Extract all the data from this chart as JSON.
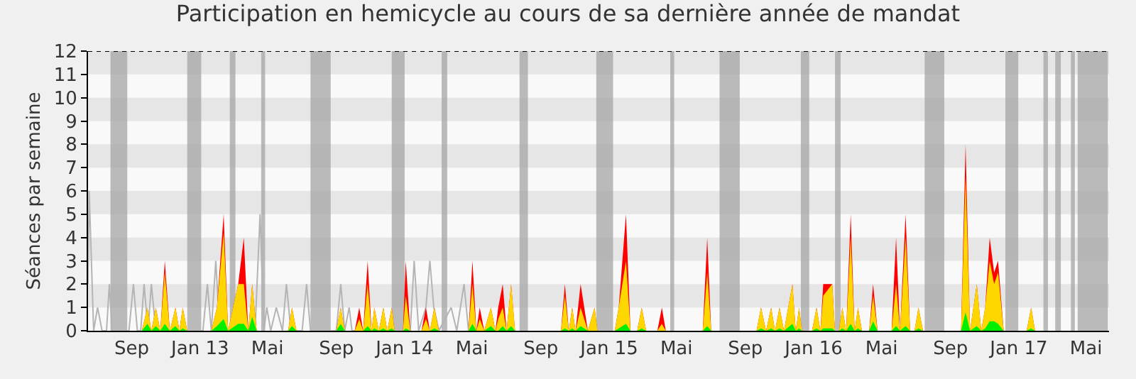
{
  "chart_data": {
    "type": "area",
    "title": "Participation en hemicycle au cours de sa dernière année de mandat",
    "ylabel": "Séances par semaine",
    "xlim": [
      "2012-06-15",
      "2017-06-11"
    ],
    "xticks": [
      {
        "value": "2012-09-01",
        "label": "Sep"
      },
      {
        "value": "2013-01-01",
        "label": "Jan 13"
      },
      {
        "value": "2013-05-01",
        "label": "Mai"
      },
      {
        "value": "2013-09-01",
        "label": "Sep"
      },
      {
        "value": "2014-01-01",
        "label": "Jan 14"
      },
      {
        "value": "2014-05-01",
        "label": "Mai"
      },
      {
        "value": "2014-09-01",
        "label": "Sep"
      },
      {
        "value": "2015-01-01",
        "label": "Jan 15"
      },
      {
        "value": "2015-05-01",
        "label": "Mai"
      },
      {
        "value": "2015-09-01",
        "label": "Sep"
      },
      {
        "value": "2016-01-01",
        "label": "Jan 16"
      },
      {
        "value": "2016-05-01",
        "label": "Mai"
      },
      {
        "value": "2016-09-01",
        "label": "Sep"
      },
      {
        "value": "2017-01-01",
        "label": "Jan 17"
      },
      {
        "value": "2017-05-01",
        "label": "Mai"
      }
    ],
    "ylim": [
      0,
      12
    ],
    "yticks": [
      0,
      1,
      2,
      3,
      4,
      5,
      6,
      7,
      8,
      9,
      10,
      11,
      12
    ],
    "grid": false,
    "x": [
      "2012-09-19",
      "2012-09-29",
      "2012-10-06",
      "2012-10-14",
      "2012-10-22",
      "2012-10-30",
      "2012-11-08",
      "2012-11-18",
      "2012-11-25",
      "2012-12-01",
      "2012-12-09",
      "2013-01-21",
      "2013-01-31",
      "2013-02-12",
      "2013-02-20",
      "2013-03-10",
      "2013-03-20",
      "2013-03-28",
      "2013-04-04",
      "2013-04-12",
      "2013-06-07",
      "2013-06-14",
      "2013-06-22",
      "2013-09-01",
      "2013-09-09",
      "2013-09-16",
      "2013-10-04",
      "2013-10-12",
      "2013-10-19",
      "2013-10-27",
      "2013-11-03",
      "2013-11-08",
      "2013-11-16",
      "2013-11-24",
      "2013-12-01",
      "2013-12-09",
      "2013-12-14",
      "2013-12-29",
      "2014-01-03",
      "2014-01-11",
      "2014-01-31",
      "2014-02-08",
      "2014-02-15",
      "2014-02-23",
      "2014-03-03",
      "2014-04-25",
      "2014-05-02",
      "2014-05-09",
      "2014-05-15",
      "2014-05-23",
      "2014-06-04",
      "2014-06-12",
      "2014-06-17",
      "2014-06-25",
      "2014-07-02",
      "2014-07-10",
      "2014-07-17",
      "2014-10-07",
      "2014-10-14",
      "2014-10-21",
      "2014-10-27",
      "2014-11-02",
      "2014-11-11",
      "2014-11-24",
      "2014-12-06",
      "2014-12-11",
      "2015-01-11",
      "2015-01-18",
      "2015-01-31",
      "2015-02-08",
      "2015-02-20",
      "2015-02-28",
      "2015-03-08",
      "2015-03-28",
      "2015-04-05",
      "2015-04-12",
      "2015-06-17",
      "2015-06-25",
      "2015-07-02",
      "2015-09-21",
      "2015-09-29",
      "2015-10-08",
      "2015-10-17",
      "2015-10-24",
      "2015-11-01",
      "2015-11-09",
      "2015-11-24",
      "2015-11-30",
      "2015-12-06",
      "2015-12-11",
      "2015-12-29",
      "2016-01-06",
      "2016-01-13",
      "2016-01-18",
      "2016-02-03",
      "2016-02-08",
      "2016-02-15",
      "2016-02-21",
      "2016-02-28",
      "2016-03-07",
      "2016-03-14",
      "2016-03-20",
      "2016-03-27",
      "2016-04-09",
      "2016-04-16",
      "2016-04-24",
      "2016-05-19",
      "2016-05-27",
      "2016-06-03",
      "2016-06-13",
      "2016-06-21",
      "2016-06-29",
      "2016-07-06",
      "2016-07-14",
      "2016-09-20",
      "2016-09-28",
      "2016-10-06",
      "2016-10-18",
      "2016-10-26",
      "2016-11-02",
      "2016-11-10",
      "2016-11-18",
      "2016-11-25",
      "2016-12-05",
      "2017-01-15",
      "2017-01-23",
      "2017-01-30"
    ],
    "series": [
      {
        "type": "line",
        "color": "#b4b4b4",
        "x": [
          "2012-06-15",
          "2012-06-17",
          "2012-06-25",
          "2012-07-02",
          "2012-07-10",
          "2012-07-18",
          "2012-07-23",
          "2012-07-28",
          "2012-08-27",
          "2012-09-04",
          "2012-09-11",
          "2012-09-17",
          "2012-09-23",
          "2012-09-30",
          "2012-10-06",
          "2012-10-14",
          "2013-01-06",
          "2013-01-14",
          "2013-01-21",
          "2013-01-29",
          "2013-02-05",
          "2013-04-09",
          "2013-04-18",
          "2013-04-25",
          "2013-04-30",
          "2013-05-07",
          "2013-05-17",
          "2013-05-28",
          "2013-06-04",
          "2013-06-12",
          "2013-07-02",
          "2013-07-10",
          "2013-07-17",
          "2013-09-01",
          "2013-09-09",
          "2013-09-16",
          "2013-09-24",
          "2013-09-29",
          "2014-01-11",
          "2014-01-18",
          "2014-01-26",
          "2014-02-08",
          "2014-02-15",
          "2014-02-22",
          "2014-03-03",
          "2014-03-25",
          "2014-04-04",
          "2014-04-17",
          "2014-04-25"
        ],
        "values": [
          2,
          6,
          0,
          1,
          0,
          0,
          2,
          0,
          0,
          2,
          0,
          0,
          2,
          0,
          2,
          0,
          0,
          2,
          0,
          3,
          0,
          0,
          5,
          0,
          1,
          0,
          1,
          0,
          2,
          0,
          0,
          2,
          0,
          0,
          2,
          0,
          1,
          0,
          0,
          3,
          0,
          1,
          3,
          1,
          0,
          1,
          0,
          2,
          0
        ]
      },
      {
        "color": "#ff0000",
        "values": [
          0,
          1,
          0,
          1,
          0,
          3,
          0,
          1,
          0,
          1,
          0,
          0,
          1,
          5,
          0,
          2,
          4,
          0,
          2,
          0,
          0,
          1,
          0,
          0,
          1,
          0,
          0,
          1,
          0,
          3,
          0,
          1,
          0,
          1,
          0,
          1,
          0,
          0,
          3,
          0,
          0,
          1,
          0,
          1,
          0,
          0,
          3,
          0,
          1,
          0,
          1,
          0,
          1,
          2,
          0,
          2,
          0,
          0,
          2,
          0,
          1,
          0,
          2,
          0,
          1,
          0,
          0,
          1,
          5,
          0,
          0,
          1,
          0,
          0,
          1,
          0,
          0,
          4,
          0,
          0,
          1,
          0,
          1,
          0,
          1,
          0,
          2,
          0,
          1,
          0,
          0,
          1,
          0,
          2,
          2,
          0,
          0,
          1,
          0,
          5,
          0,
          1,
          0,
          0,
          2,
          0,
          0,
          4,
          0,
          5,
          0,
          0,
          1,
          0,
          0,
          8,
          0,
          2,
          0,
          1,
          4,
          2.5,
          3,
          0,
          0,
          1,
          0
        ]
      },
      {
        "color": "#ffd700",
        "values": [
          0,
          1,
          0,
          1,
          0,
          2.5,
          0,
          1,
          0,
          1,
          0,
          0,
          1,
          4.2,
          0,
          2,
          2,
          0,
          2,
          0,
          0,
          1,
          0,
          0,
          1,
          0,
          0,
          0.5,
          0,
          2,
          0,
          1,
          0,
          1,
          0,
          1,
          0,
          0,
          1.5,
          0,
          0,
          0.5,
          0,
          1,
          0,
          0,
          2,
          0,
          0.5,
          0,
          1,
          0,
          0.5,
          1,
          0,
          2,
          0,
          0,
          1.5,
          0,
          1,
          0,
          1,
          0,
          1,
          0,
          0,
          1,
          3,
          0,
          0,
          1,
          0,
          0,
          0.3,
          0,
          0,
          2.5,
          0,
          0,
          1,
          0,
          1,
          0,
          1,
          0,
          2,
          0,
          1,
          0,
          0,
          1,
          0,
          1.5,
          2,
          0,
          0,
          1,
          0,
          4,
          0,
          1,
          0,
          0,
          1.5,
          0,
          0,
          2,
          0,
          4,
          0,
          0,
          1,
          0,
          0,
          6.6,
          0,
          2,
          0,
          1,
          3,
          2,
          2.5,
          0,
          0,
          1,
          0
        ]
      },
      {
        "color": "#00ee00",
        "values": [
          0,
          0.3,
          0,
          0.2,
          0,
          0.3,
          0,
          0.2,
          0,
          0.1,
          0,
          0,
          0.2,
          0.5,
          0,
          0.3,
          0.3,
          0,
          0.6,
          0,
          0,
          0.2,
          0,
          0,
          0.3,
          0,
          0,
          0,
          0,
          0.2,
          0,
          0.1,
          0,
          0.1,
          0,
          0.1,
          0,
          0,
          0.1,
          0,
          0,
          0,
          0,
          0.1,
          0,
          0,
          0.3,
          0,
          0,
          0,
          0.2,
          0,
          0,
          0.2,
          0,
          0.2,
          0,
          0,
          0.1,
          0,
          0.1,
          0,
          0.2,
          0,
          0,
          0,
          0,
          0.1,
          0.3,
          0,
          0,
          0.1,
          0,
          0,
          0,
          0,
          0,
          0.2,
          0,
          0,
          0.1,
          0,
          0.1,
          0,
          0.1,
          0,
          0.3,
          0,
          0.1,
          0,
          0,
          0.1,
          0,
          0.1,
          0.1,
          0,
          0,
          0.1,
          0,
          0.3,
          0,
          0.1,
          0,
          0,
          0.4,
          0,
          0,
          0.2,
          0,
          0.2,
          0,
          0,
          0.1,
          0,
          0,
          0.8,
          0,
          0.2,
          0,
          0.1,
          0.4,
          0.4,
          0.3,
          0,
          0,
          0.1,
          0
        ]
      }
    ],
    "ref_lines": [
      {
        "axis": "y",
        "value": 12,
        "color": "#000000",
        "line_style": "dotted"
      }
    ],
    "bands": [
      {
        "axis": "y",
        "from": 1,
        "to": 2,
        "color": "#e6e6e6"
      },
      {
        "axis": "y",
        "from": 3,
        "to": 4,
        "color": "#e6e6e6"
      },
      {
        "axis": "y",
        "from": 5,
        "to": 6,
        "color": "#e6e6e6"
      },
      {
        "axis": "y",
        "from": 7,
        "to": 8,
        "color": "#e6e6e6"
      },
      {
        "axis": "y",
        "from": 9,
        "to": 10,
        "color": "#e6e6e6"
      },
      {
        "axis": "y",
        "from": 11,
        "to": 12,
        "color": "#e6e6e6"
      },
      {
        "axis": "x",
        "from": "2012-07-25",
        "to": "2012-08-24",
        "color": "#a0a0a0"
      },
      {
        "axis": "x",
        "from": "2012-12-09",
        "to": "2013-01-03",
        "color": "#a0a0a0"
      },
      {
        "axis": "x",
        "from": "2013-02-23",
        "to": "2013-03-05",
        "color": "#a0a0a0"
      },
      {
        "axis": "x",
        "from": "2013-04-20",
        "to": "2013-04-27",
        "color": "#a0a0a0"
      },
      {
        "axis": "x",
        "from": "2013-07-17",
        "to": "2013-08-22",
        "color": "#a0a0a0"
      },
      {
        "axis": "x",
        "from": "2013-12-09",
        "to": "2014-01-01",
        "color": "#a0a0a0"
      },
      {
        "axis": "x",
        "from": "2014-03-08",
        "to": "2014-03-18",
        "color": "#a0a0a0"
      },
      {
        "axis": "x",
        "from": "2014-07-25",
        "to": "2014-08-09",
        "color": "#a0a0a0"
      },
      {
        "axis": "x",
        "from": "2014-12-09",
        "to": "2015-01-08",
        "color": "#a0a0a0"
      },
      {
        "axis": "x",
        "from": "2015-04-20",
        "to": "2015-04-27",
        "color": "#a0a0a0"
      },
      {
        "axis": "x",
        "from": "2015-07-17",
        "to": "2015-08-22",
        "color": "#a0a0a0"
      },
      {
        "axis": "x",
        "from": "2015-12-09",
        "to": "2015-12-24",
        "color": "#a0a0a0"
      },
      {
        "axis": "x",
        "from": "2016-02-08",
        "to": "2016-02-18",
        "color": "#a0a0a0"
      },
      {
        "axis": "x",
        "from": "2016-07-17",
        "to": "2016-08-21",
        "color": "#a0a0a0"
      },
      {
        "axis": "x",
        "from": "2016-12-08",
        "to": "2016-12-31",
        "color": "#a0a0a0"
      },
      {
        "axis": "x",
        "from": "2017-02-14",
        "to": "2017-02-22",
        "color": "#a0a0a0"
      },
      {
        "axis": "x",
        "from": "2017-03-07",
        "to": "2017-03-17",
        "color": "#a0a0a0"
      },
      {
        "axis": "x",
        "from": "2017-04-04",
        "to": "2017-04-11",
        "color": "#a0a0a0"
      },
      {
        "axis": "x",
        "from": "2017-04-16",
        "to": "2017-06-09",
        "color": "#a0a0a0"
      }
    ]
  }
}
